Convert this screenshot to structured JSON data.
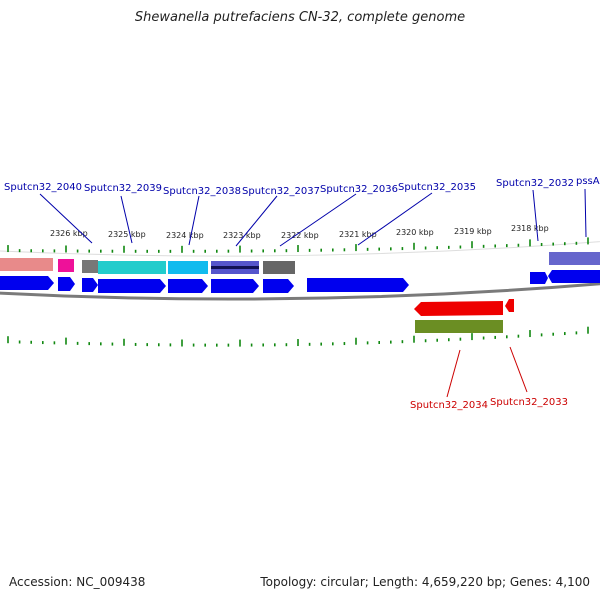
{
  "title": "Shewanella putrefaciens CN-32, complete genome",
  "footer": {
    "accession": "Accession: NC_009438",
    "summary": "Topology: circular; Length: 4,659,220 bp; Genes: 4,100"
  },
  "colors": {
    "forward_cds": "#0000ee",
    "reverse_cds": "#ee0000",
    "backbone": "#888888",
    "ticks": "#118811",
    "label_forward": "#0000aa",
    "label_reverse": "#cc0000"
  },
  "scale_labels": [
    "2326 kbp",
    "2325 kbp",
    "2324 kbp",
    "2323 kbp",
    "2322 kbp",
    "2321 kbp",
    "2320 kbp",
    "2319 kbp",
    "2318 kbp"
  ],
  "forward_gene_labels": [
    "Sputcn32_2040",
    "Sputcn32_2039",
    "Sputcn32_2038",
    "Sputcn32_2037",
    "Sputcn32_2036",
    "Sputcn32_2035",
    "Sputcn32_2032",
    "pssA"
  ],
  "reverse_gene_labels": [
    "Sputcn32_2034",
    "Sputcn32_2033"
  ]
}
